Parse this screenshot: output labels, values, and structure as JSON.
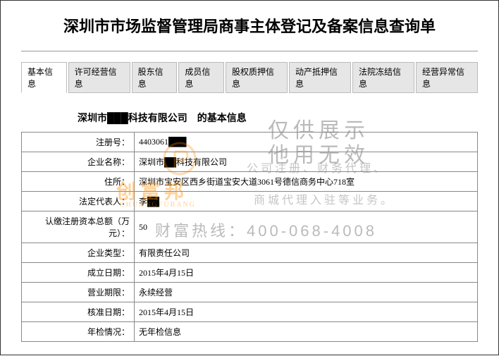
{
  "title": "深圳市市场监督管理局商事主体登记及备案信息查询单",
  "tabs": [
    {
      "label": "基本信息",
      "active": true
    },
    {
      "label": "许可经营信息",
      "active": false
    },
    {
      "label": "股东信息",
      "active": false
    },
    {
      "label": "成员信息",
      "active": false
    },
    {
      "label": "股权质押信息",
      "active": false
    },
    {
      "label": "动产抵押信息",
      "active": false
    },
    {
      "label": "法院冻结信息",
      "active": false
    },
    {
      "label": "经营异常信息",
      "active": false
    }
  ],
  "subtitle": "深圳市███科技有限公司　的基本信息",
  "rows": [
    {
      "label": "注册号：",
      "value": "4403061███"
    },
    {
      "label": "企业名称：",
      "value": "深圳市██科技有限公司"
    },
    {
      "label": "住所：",
      "value": "深圳市宝安区西乡街道宝安大道3061号德信商务中心718室"
    },
    {
      "label": "法定代表人：",
      "value": "李██"
    },
    {
      "label": "认缴注册资本总额（万元）：",
      "value": "50"
    },
    {
      "label": "企业类型：",
      "value": "有限责任公司"
    },
    {
      "label": "成立日期：",
      "value": "2015年4月15日"
    },
    {
      "label": "营业期限：",
      "value": "永续经营"
    },
    {
      "label": "核准日期：",
      "value": "2015年4月15日"
    },
    {
      "label": "年检情况：",
      "value": "无年检信息"
    }
  ],
  "watermarks": {
    "wm1": "仅供展示",
    "wm2": "他用无效",
    "wm3": "公司注册、财务代理、",
    "wm4": "商城代理入驻等业务。",
    "wm5": "财富热线：400-068-4008",
    "brand": "创富邦",
    "brand_en": "CHUANGFUBANG"
  },
  "colors": {
    "border": "#888888",
    "tab_bg": "#e6e6e6",
    "tab_border": "#bbbbbb",
    "watermark_gray": "rgba(140,140,140,0.6)",
    "watermark_orange": "rgba(255,140,0,0.4)"
  }
}
